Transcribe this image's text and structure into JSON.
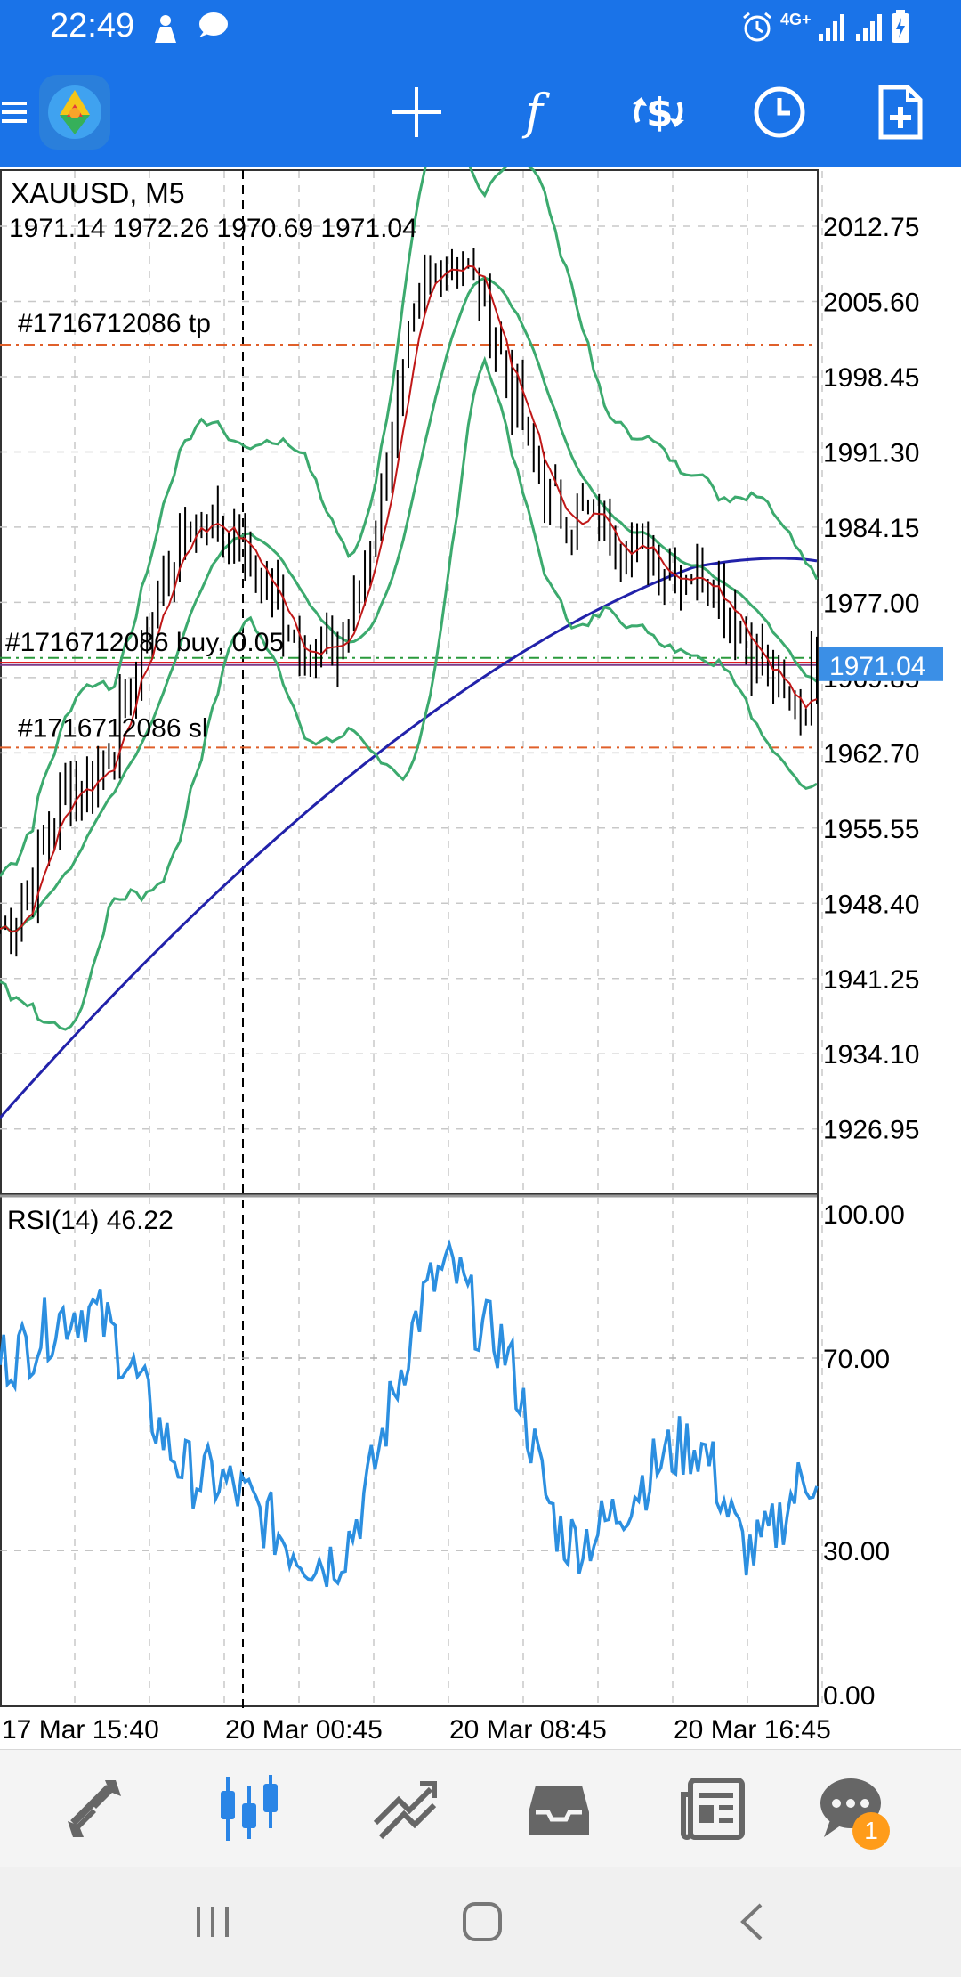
{
  "status_bar": {
    "time": "22:49",
    "network_label": "4G+",
    "icons": [
      "person-icon",
      "chat-bubble-icon",
      "alarm-icon",
      "signal-icon",
      "signal-icon",
      "battery-icon"
    ]
  },
  "toolbar": {
    "items": [
      "menu-icon",
      "app-logo",
      "crosshair-icon",
      "indicators-icon",
      "new-order-icon",
      "timeframe-icon",
      "objects-icon"
    ]
  },
  "chart": {
    "symbol_line": "XAUUSD, M5",
    "ohlc_line": "1971.14 1972.26 1970.69 1971.04",
    "tp_label": "#1716712086 tp",
    "buy_label": "#1716712086 buy, 0.05",
    "sl_label": "#1716712086 sl",
    "current_price": "1971.04",
    "price_ticks": [
      "2012.75",
      "2005.60",
      "1998.45",
      "1991.30",
      "1984.15",
      "1977.00",
      "1969.85",
      "1962.70",
      "1955.55",
      "1948.40",
      "1941.25",
      "1934.10",
      "1926.95"
    ],
    "tp_price": 2001.5,
    "buy_price": 1971.04,
    "sl_price": 1963.2,
    "time_ticks": [
      "17 Mar 15:40",
      "20 Mar 00:45",
      "20 Mar 08:45",
      "20 Mar 16:45"
    ],
    "colors": {
      "candles": "#000000",
      "bollinger": "#3caa6e",
      "fast_ma": "#c01818",
      "slow_ma": "#2222aa",
      "rsi": "#2c8fe0",
      "current_price_tag": "#3b8fe6",
      "order_lines": "#e0602b"
    }
  },
  "rsi": {
    "label": "RSI(14) 46.22",
    "ticks": [
      "100.00",
      "70.00",
      "30.00",
      "0.00"
    ]
  },
  "chart_data": {
    "type": "line",
    "title": "XAUUSD, M5",
    "price_range": [
      1921.0,
      2018.0
    ],
    "series": [
      {
        "name": "XAUUSD",
        "type": "candlestick",
        "x": [
          0,
          10,
          25,
          40,
          55,
          70,
          85,
          98,
          100
        ],
        "values": [
          1946,
          1960,
          1985,
          1972,
          2010,
          1985,
          1980,
          1967,
          1971.04
        ]
      },
      {
        "name": "RSI(14)",
        "x": [
          0,
          10,
          25,
          40,
          55,
          60,
          70,
          85,
          92,
          100
        ],
        "values": [
          70,
          80,
          45,
          28,
          88,
          75,
          32,
          52,
          30,
          46.22
        ]
      }
    ]
  },
  "bottom_nav": {
    "items": [
      "quotes-icon",
      "chart-icon",
      "trade-icon",
      "history-icon",
      "news-icon",
      "messages-icon"
    ],
    "badge": "1"
  },
  "system_nav": {
    "items": [
      "recent-apps-icon",
      "home-icon",
      "back-icon"
    ]
  }
}
